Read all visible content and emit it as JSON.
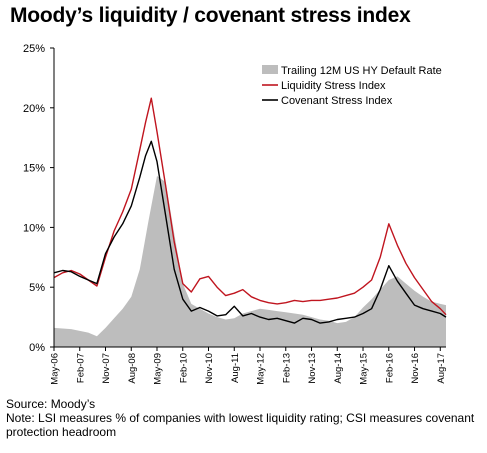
{
  "title": "Moody’s liquidity / covenant stress index",
  "footer": {
    "source": "Source: Moody’s",
    "note": "Note: LSI measures % of companies with lowest liquidity rating; CSI measures covenant protection headroom"
  },
  "chart_data": {
    "type": "line",
    "title": "Moody’s liquidity / covenant stress index",
    "xlabel": "",
    "ylabel": "",
    "x_range": [
      "2006-05",
      "2017-10"
    ],
    "ylim": [
      0,
      25
    ],
    "y_ticks": [
      0,
      5,
      10,
      15,
      20,
      25
    ],
    "y_tick_labels": [
      "0%",
      "5%",
      "10%",
      "15%",
      "20%",
      "25%"
    ],
    "x_ticks": [
      "2006-05",
      "2007-02",
      "2007-11",
      "2008-08",
      "2009-05",
      "2010-02",
      "2010-11",
      "2011-08",
      "2012-05",
      "2013-02",
      "2013-11",
      "2014-08",
      "2015-05",
      "2016-02",
      "2016-11",
      "2017-08"
    ],
    "x_tick_labels": [
      "May-06",
      "Feb-07",
      "Nov-07",
      "Aug-08",
      "May-09",
      "Feb-10",
      "Nov-10",
      "Aug-11",
      "May-12",
      "Feb-13",
      "Nov-13",
      "Aug-14",
      "May-15",
      "Feb-16",
      "Nov-16",
      "Aug-17"
    ],
    "grid": false,
    "legend_position": "top-right",
    "series": [
      {
        "name": "Trailing 12M US HY Default Rate",
        "type": "area",
        "color": "#bdbdbd",
        "x": [
          "2006-05",
          "2006-11",
          "2007-05",
          "2007-08",
          "2007-11",
          "2008-02",
          "2008-05",
          "2008-08",
          "2008-11",
          "2009-02",
          "2009-05",
          "2009-08",
          "2009-11",
          "2010-02",
          "2010-05",
          "2010-08",
          "2010-11",
          "2011-02",
          "2011-05",
          "2011-08",
          "2011-11",
          "2012-02",
          "2012-05",
          "2012-08",
          "2012-11",
          "2013-02",
          "2013-05",
          "2013-08",
          "2013-11",
          "2014-02",
          "2014-05",
          "2014-08",
          "2014-11",
          "2015-02",
          "2015-05",
          "2015-08",
          "2015-11",
          "2016-02",
          "2016-05",
          "2016-08",
          "2016-11",
          "2017-02",
          "2017-05",
          "2017-08",
          "2017-10"
        ],
        "values": [
          1.6,
          1.5,
          1.2,
          0.9,
          1.6,
          2.4,
          3.2,
          4.2,
          6.5,
          10.5,
          14.3,
          13.8,
          9.5,
          5.3,
          3.6,
          3.2,
          2.8,
          2.5,
          2.3,
          2.4,
          2.8,
          3.0,
          3.2,
          3.1,
          3.0,
          2.9,
          2.8,
          2.7,
          2.5,
          2.3,
          2.2,
          2.0,
          2.1,
          2.5,
          3.3,
          4.0,
          4.8,
          5.6,
          5.9,
          5.3,
          4.7,
          4.2,
          3.8,
          3.6,
          3.5
        ]
      },
      {
        "name": "Liquidity Stress Index",
        "type": "line",
        "color": "#c0151f",
        "x": [
          "2006-05",
          "2006-08",
          "2006-11",
          "2007-02",
          "2007-05",
          "2007-08",
          "2007-11",
          "2008-02",
          "2008-05",
          "2008-08",
          "2008-11",
          "2009-01",
          "2009-03",
          "2009-05",
          "2009-08",
          "2009-11",
          "2010-02",
          "2010-05",
          "2010-08",
          "2010-11",
          "2011-02",
          "2011-05",
          "2011-08",
          "2011-11",
          "2012-02",
          "2012-05",
          "2012-08",
          "2012-11",
          "2013-02",
          "2013-05",
          "2013-08",
          "2013-11",
          "2014-02",
          "2014-05",
          "2014-08",
          "2014-11",
          "2015-02",
          "2015-05",
          "2015-08",
          "2015-11",
          "2016-02",
          "2016-05",
          "2016-08",
          "2016-11",
          "2017-02",
          "2017-05",
          "2017-08",
          "2017-10"
        ],
        "values": [
          5.8,
          6.2,
          6.4,
          6.1,
          5.6,
          5.1,
          7.5,
          9.7,
          11.3,
          13.2,
          16.5,
          18.8,
          20.8,
          18.0,
          13.5,
          8.8,
          5.3,
          4.6,
          5.7,
          5.9,
          5.0,
          4.3,
          4.5,
          4.8,
          4.2,
          3.9,
          3.7,
          3.6,
          3.7,
          3.9,
          3.8,
          3.9,
          3.9,
          4.0,
          4.1,
          4.3,
          4.5,
          5.0,
          5.6,
          7.5,
          10.3,
          8.5,
          7.0,
          5.8,
          4.8,
          3.8,
          3.2,
          2.7
        ]
      },
      {
        "name": "Covenant Stress Index",
        "type": "line",
        "color": "#000000",
        "x": [
          "2006-05",
          "2006-08",
          "2006-11",
          "2007-02",
          "2007-05",
          "2007-08",
          "2007-11",
          "2008-02",
          "2008-05",
          "2008-08",
          "2008-11",
          "2009-01",
          "2009-03",
          "2009-05",
          "2009-08",
          "2009-11",
          "2010-02",
          "2010-05",
          "2010-08",
          "2010-11",
          "2011-02",
          "2011-05",
          "2011-08",
          "2011-11",
          "2012-02",
          "2012-05",
          "2012-08",
          "2012-11",
          "2013-02",
          "2013-05",
          "2013-08",
          "2013-11",
          "2014-02",
          "2014-05",
          "2014-08",
          "2014-11",
          "2015-02",
          "2015-05",
          "2015-08",
          "2015-11",
          "2016-02",
          "2016-05",
          "2016-08",
          "2016-11",
          "2017-02",
          "2017-05",
          "2017-08",
          "2017-10"
        ],
        "values": [
          6.2,
          6.4,
          6.3,
          5.9,
          5.6,
          5.3,
          7.8,
          9.2,
          10.3,
          11.8,
          14.2,
          16.0,
          17.2,
          15.5,
          11.0,
          6.5,
          4.0,
          3.0,
          3.3,
          3.0,
          2.6,
          2.7,
          3.4,
          2.6,
          2.8,
          2.5,
          2.3,
          2.4,
          2.2,
          2.0,
          2.4,
          2.3,
          2.0,
          2.1,
          2.3,
          2.4,
          2.5,
          2.8,
          3.2,
          4.8,
          6.8,
          5.5,
          4.5,
          3.5,
          3.2,
          3.0,
          2.8,
          2.5
        ]
      }
    ]
  }
}
